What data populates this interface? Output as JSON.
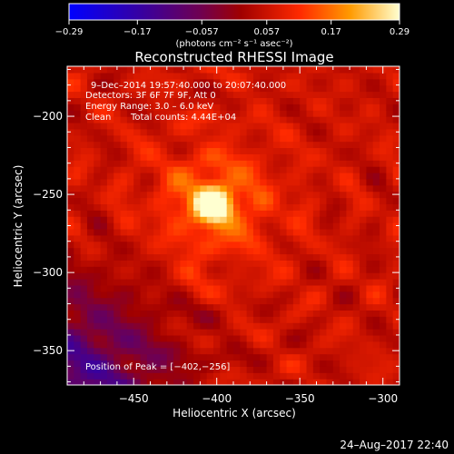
{
  "colorbar": {
    "min": -0.29,
    "max": 0.29,
    "tick_labels": [
      "-0.29",
      "-0.17",
      "-0.057",
      "0.057",
      "0.17",
      "0.29"
    ],
    "tick_values": [
      -0.29,
      -0.17,
      -0.057,
      0.057,
      0.17,
      0.29
    ],
    "unit_label": "(photons cm⁻² s⁻¹ asec⁻²)"
  },
  "chart_data": {
    "type": "heatmap",
    "title": "Reconstructed RHESSI Image",
    "xlabel": "Heliocentric X (arcsec)",
    "ylabel": "Heliocentric Y (arcsec)",
    "xlim": [
      -490,
      -290
    ],
    "ylim": [
      -372,
      -168
    ],
    "x_ticks": [
      -450,
      -400,
      -350,
      -300
    ],
    "x_tick_labels": [
      "−450",
      "−400",
      "−350",
      "−300"
    ],
    "y_ticks": [
      -200,
      -250,
      -300,
      -350
    ],
    "y_tick_labels": [
      "−200",
      "−250",
      "−300",
      "−350"
    ],
    "peak": {
      "x": -402,
      "y": -256,
      "value": 0.29
    },
    "annotations": {
      "time_range": "9–Dec–2014 19:57:40.000 to 20:07:40.000",
      "detectors": "Detectors: 3F 6F 7F 9F, Att 0",
      "energy": "Energy Range: 3.0 – 6.0 keV",
      "clean": "Clean",
      "counts": "Total counts: 4.44E+04",
      "peak_label": "Position of Peak = [−402,−256]"
    },
    "colormap": [
      "#0000ff",
      "#400080",
      "#800000",
      "#ff2000",
      "#ff9000",
      "#ffffc0"
    ]
  },
  "footer": {
    "timestamp": "24–Aug–2017 22:40"
  }
}
